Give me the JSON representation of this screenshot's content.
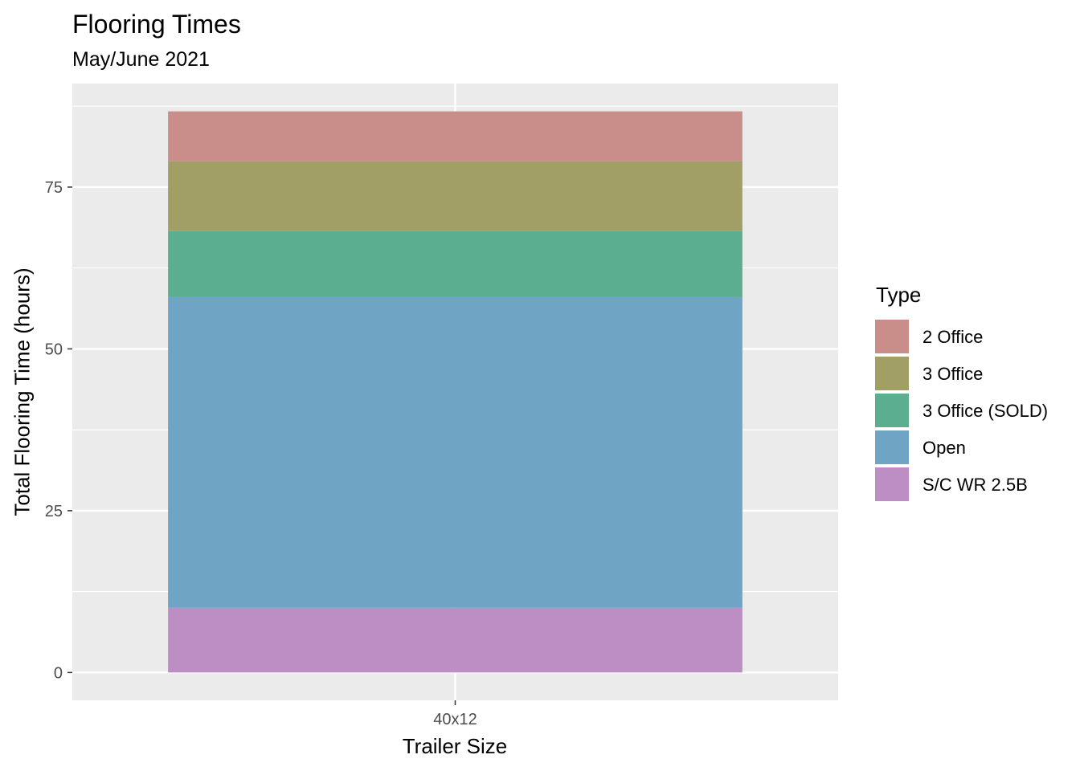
{
  "chart_data": {
    "type": "bar",
    "stacked": true,
    "title": "Flooring Times",
    "subtitle": "May/June 2021",
    "xlabel": "Trailer Size",
    "ylabel": "Total Flooring Time (hours)",
    "categories": [
      "40x12"
    ],
    "yticks": [
      0,
      25,
      50,
      75
    ],
    "ylim": [
      -4.3,
      91
    ],
    "grid": true,
    "legend": {
      "title": "Type",
      "placement": "right"
    },
    "series": [
      {
        "name": "2 Office",
        "values": [
          7.7
        ],
        "color": "#C98D8A"
      },
      {
        "name": "3 Office",
        "values": [
          10.8
        ],
        "color": "#A19E66"
      },
      {
        "name": "3 Office (SOLD)",
        "values": [
          10.2
        ],
        "color": "#5BAE90"
      },
      {
        "name": "Open",
        "values": [
          48
        ],
        "color": "#6FA4C4"
      },
      {
        "name": "S/C WR 2.5B",
        "values": [
          10
        ],
        "color": "#BC8EC4"
      }
    ],
    "stack_order_bottom_to_top": [
      "S/C WR 2.5B",
      "Open",
      "3 Office (SOLD)",
      "3 Office",
      "2 Office"
    ],
    "panel_background": "#EBEBEB",
    "grid_color": "#FFFFFF",
    "tick_label_color": "#4D4D4D"
  }
}
